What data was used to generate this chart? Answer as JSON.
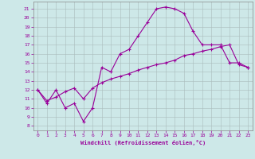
{
  "title": "",
  "xlabel": "Windchill (Refroidissement éolien,°C)",
  "bg_color": "#cde8e8",
  "line_color": "#990099",
  "xlim": [
    -0.5,
    23.5
  ],
  "ylim": [
    7.5,
    21.8
  ],
  "xticks": [
    0,
    1,
    2,
    3,
    4,
    5,
    6,
    7,
    8,
    9,
    10,
    11,
    12,
    13,
    14,
    15,
    16,
    17,
    18,
    19,
    20,
    21,
    22,
    23
  ],
  "yticks": [
    8,
    9,
    10,
    11,
    12,
    13,
    14,
    15,
    16,
    17,
    18,
    19,
    20,
    21
  ],
  "line1_x": [
    0,
    1,
    2,
    3,
    4,
    5,
    6,
    7,
    8,
    9,
    10,
    11,
    12,
    13,
    14,
    15,
    16,
    17,
    18,
    19,
    20,
    21,
    22,
    23
  ],
  "line1_y": [
    12.0,
    10.5,
    12.0,
    10.0,
    10.5,
    8.5,
    10.0,
    14.5,
    14.0,
    16.0,
    16.5,
    18.0,
    19.5,
    21.0,
    21.2,
    21.0,
    20.5,
    18.5,
    17.0,
    17.0,
    17.0,
    15.0,
    15.0,
    14.5
  ],
  "line2_x": [
    0,
    1,
    2,
    3,
    4,
    5,
    6,
    7,
    8,
    9,
    10,
    11,
    12,
    13,
    14,
    15,
    16,
    17,
    18,
    19,
    20,
    21,
    22,
    23
  ],
  "line2_y": [
    12.0,
    10.8,
    11.2,
    11.8,
    12.2,
    11.0,
    12.2,
    12.8,
    13.2,
    13.5,
    13.8,
    14.2,
    14.5,
    14.8,
    15.0,
    15.3,
    15.8,
    16.0,
    16.3,
    16.5,
    16.8,
    17.0,
    14.8,
    14.5
  ]
}
